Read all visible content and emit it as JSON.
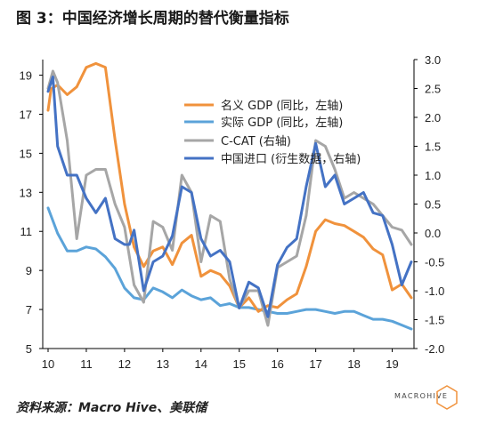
{
  "title": "图 3：中国经济增长周期的替代衡量指标",
  "source": "资料来源：Macro Hive、美联储",
  "logo": {
    "text": "MACROHIVE",
    "icon": "hexagon-logo-icon"
  },
  "colors": {
    "nominal": "#F0923C",
    "real": "#5BA3D9",
    "ccat": "#A6A6A6",
    "imports": "#4472C4"
  },
  "chart_data": {
    "type": "line",
    "x_ticks": [
      "10",
      "11",
      "12",
      "13",
      "14",
      "15",
      "16",
      "17",
      "18",
      "19"
    ],
    "ylim_left": [
      5,
      19.8
    ],
    "ylim_right": [
      -2.0,
      3.0
    ],
    "yticks_left": [
      "19",
      "17",
      "15",
      "13",
      "11",
      "9",
      "7",
      "5"
    ],
    "yticks_right": [
      "3.0",
      "2.5",
      "2.0",
      "1.5",
      "1.0",
      "0.5",
      "0.0",
      "-0.5",
      "-1.0",
      "-1.5",
      "-2.0"
    ],
    "grid": false,
    "legend": "top-right",
    "series": [
      {
        "name": "名义 GDP (同比，左轴)",
        "axis": "left",
        "color_key": "nominal",
        "x": [
          10.0,
          10.08,
          10.25,
          10.5,
          10.75,
          11.0,
          11.25,
          11.5,
          11.75,
          12.0,
          12.25,
          12.5,
          12.75,
          13.0,
          13.25,
          13.5,
          13.75,
          14.0,
          14.25,
          14.5,
          14.75,
          15.0,
          15.25,
          15.5,
          15.75,
          16.0,
          16.25,
          16.5,
          16.75,
          17.0,
          17.25,
          17.5,
          17.75,
          18.0,
          18.25,
          18.5,
          18.75,
          19.0,
          19.25,
          19.5
        ],
        "values": [
          17.2,
          18.3,
          18.5,
          18.0,
          18.4,
          19.4,
          19.6,
          19.4,
          15.7,
          12.4,
          10.2,
          9.2,
          10.0,
          10.2,
          9.3,
          10.4,
          10.8,
          8.7,
          9.0,
          8.8,
          8.2,
          7.1,
          7.6,
          6.9,
          7.2,
          7.1,
          7.5,
          7.8,
          9.2,
          11.0,
          11.6,
          11.4,
          11.3,
          11.0,
          10.7,
          10.1,
          9.8,
          8.0,
          8.3,
          7.6
        ]
      },
      {
        "name": "实际 GDP (同比，左轴)",
        "axis": "left",
        "color_key": "real",
        "x": [
          10.0,
          10.25,
          10.5,
          10.75,
          11.0,
          11.25,
          11.5,
          11.75,
          12.0,
          12.25,
          12.5,
          12.75,
          13.0,
          13.25,
          13.5,
          13.75,
          14.0,
          14.25,
          14.5,
          14.75,
          15.0,
          15.25,
          15.5,
          15.75,
          16.0,
          16.25,
          16.5,
          16.75,
          17.0,
          17.25,
          17.5,
          17.75,
          18.0,
          18.25,
          18.5,
          18.75,
          19.0,
          19.25,
          19.5
        ],
        "values": [
          12.2,
          10.9,
          10.0,
          10.0,
          10.2,
          10.1,
          9.7,
          9.1,
          8.1,
          7.6,
          7.5,
          8.1,
          7.9,
          7.6,
          8.0,
          7.7,
          7.5,
          7.6,
          7.2,
          7.3,
          7.1,
          7.1,
          7.0,
          6.9,
          6.8,
          6.8,
          6.9,
          7.0,
          7.0,
          6.9,
          6.8,
          6.9,
          6.9,
          6.7,
          6.5,
          6.5,
          6.4,
          6.2,
          6.0
        ]
      },
      {
        "name": "C-CAT (右轴)",
        "axis": "right",
        "color_key": "ccat",
        "x": [
          10.0,
          10.125,
          10.25,
          10.5,
          10.75,
          11.0,
          11.25,
          11.5,
          11.75,
          12.0,
          12.25,
          12.5,
          12.75,
          13.0,
          13.25,
          13.5,
          13.75,
          14.0,
          14.25,
          14.5,
          14.75,
          15.0,
          15.25,
          15.5,
          15.75,
          16.0,
          16.25,
          16.5,
          16.75,
          17.0,
          17.25,
          17.5,
          17.75,
          18.0,
          18.25,
          18.5,
          18.75,
          19.0,
          19.25,
          19.5
        ],
        "values": [
          2.5,
          2.8,
          2.6,
          1.6,
          -0.1,
          1.0,
          1.1,
          1.1,
          0.5,
          0.1,
          -0.9,
          -1.2,
          0.2,
          0.1,
          -0.3,
          1.0,
          0.7,
          -0.5,
          0.3,
          0.2,
          -0.8,
          -1.3,
          -1.0,
          -1.0,
          -1.6,
          -0.6,
          -0.5,
          -0.4,
          0.3,
          1.6,
          1.5,
          1.1,
          0.6,
          0.7,
          0.6,
          0.5,
          0.3,
          0.1,
          0.05,
          -0.2
        ]
      },
      {
        "name": "中国进口 (衍生数据，右轴)",
        "axis": "right",
        "color_key": "imports",
        "x": [
          10.0,
          10.125,
          10.25,
          10.5,
          10.75,
          11.0,
          11.25,
          11.5,
          11.75,
          12.0,
          12.125,
          12.25,
          12.5,
          12.75,
          13.0,
          13.25,
          13.5,
          13.75,
          14.0,
          14.25,
          14.5,
          14.75,
          15.0,
          15.25,
          15.5,
          15.75,
          16.0,
          16.25,
          16.5,
          16.75,
          17.0,
          17.25,
          17.5,
          17.75,
          18.0,
          18.25,
          18.5,
          18.75,
          19.0,
          19.25,
          19.5
        ],
        "values": [
          2.45,
          2.7,
          1.5,
          1.0,
          1.0,
          0.6,
          0.35,
          0.6,
          -0.1,
          -0.2,
          -0.2,
          0.05,
          -1.0,
          -0.5,
          -0.4,
          -0.05,
          0.8,
          0.7,
          -0.1,
          -0.4,
          -0.3,
          -0.5,
          -1.3,
          -0.85,
          -0.95,
          -1.45,
          -0.55,
          -0.25,
          -0.1,
          0.8,
          1.55,
          0.8,
          1.0,
          0.5,
          0.6,
          0.7,
          0.35,
          0.3,
          -0.2,
          -0.9,
          -0.5
        ]
      }
    ]
  }
}
